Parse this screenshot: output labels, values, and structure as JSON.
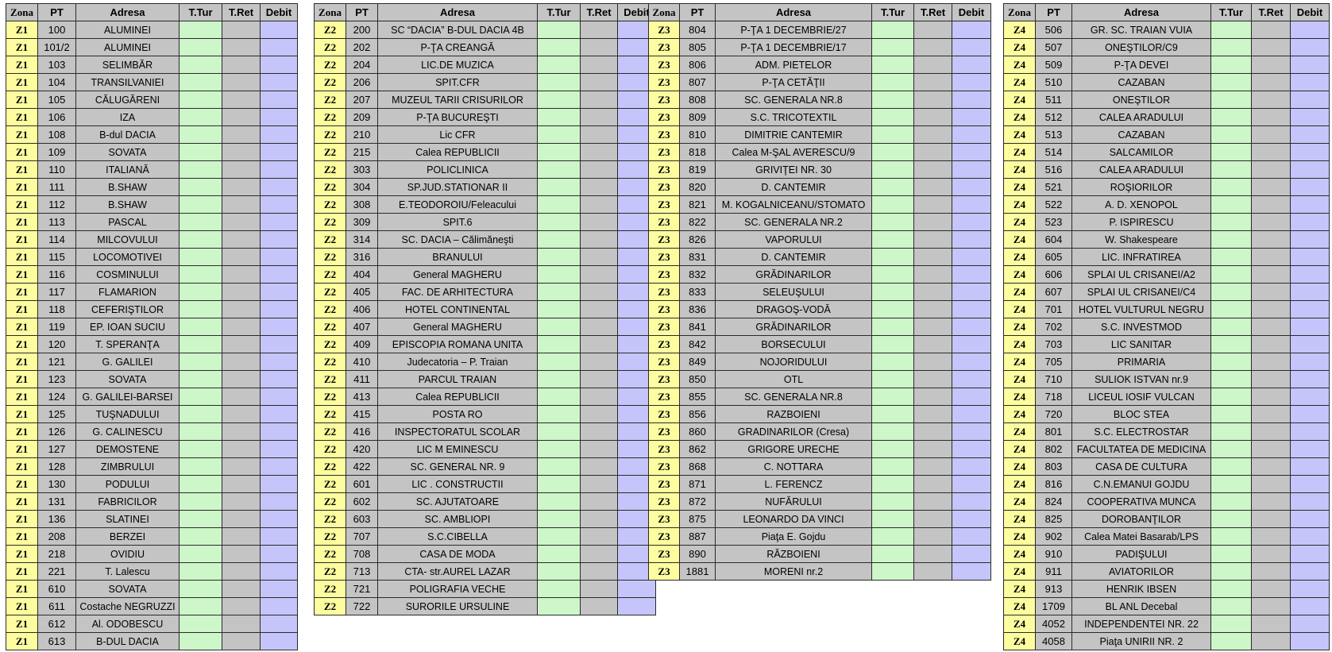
{
  "headers": [
    "Zona",
    "PT",
    "Adresa",
    "T.Tur",
    "T.Ret",
    "Debit"
  ],
  "tables": [
    {
      "zona": "Z1",
      "rows": [
        {
          "pt": "100",
          "adresa": "ALUMINEI"
        },
        {
          "pt": "101/2",
          "adresa": "ALUMINEI"
        },
        {
          "pt": "103",
          "adresa": "SELIMBĂR"
        },
        {
          "pt": "104",
          "adresa": "TRANSILVANIEI"
        },
        {
          "pt": "105",
          "adresa": "CĂLUGĂRENI"
        },
        {
          "pt": "106",
          "adresa": "IZA"
        },
        {
          "pt": "108",
          "adresa": "B-dul DACIA"
        },
        {
          "pt": "109",
          "adresa": "SOVATA"
        },
        {
          "pt": "110",
          "adresa": "ITALIANĂ"
        },
        {
          "pt": "111",
          "adresa": "B.SHAW"
        },
        {
          "pt": "112",
          "adresa": "B.SHAW"
        },
        {
          "pt": "113",
          "adresa": "PASCAL"
        },
        {
          "pt": "114",
          "adresa": "MILCOVULUI"
        },
        {
          "pt": "115",
          "adresa": "LOCOMOTIVEI"
        },
        {
          "pt": "116",
          "adresa": "COSMINULUI"
        },
        {
          "pt": "117",
          "adresa": "FLAMARION"
        },
        {
          "pt": "118",
          "adresa": "CEFERIŞTILOR"
        },
        {
          "pt": "119",
          "adresa": "EP. IOAN SUCIU"
        },
        {
          "pt": "120",
          "adresa": "T. SPERANŢA"
        },
        {
          "pt": "121",
          "adresa": "G. GALILEI"
        },
        {
          "pt": "123",
          "adresa": "SOVATA"
        },
        {
          "pt": "124",
          "adresa": "G. GALILEI-BARSEI"
        },
        {
          "pt": "125",
          "adresa": "TUŞNADULUI"
        },
        {
          "pt": "126",
          "adresa": "G. CALINESCU"
        },
        {
          "pt": "127",
          "adresa": "DEMOSTENE"
        },
        {
          "pt": "128",
          "adresa": "ZIMBRULUI"
        },
        {
          "pt": "130",
          "adresa": "PODULUI"
        },
        {
          "pt": "131",
          "adresa": "FABRICILOR"
        },
        {
          "pt": "136",
          "adresa": "SLATINEI"
        },
        {
          "pt": "208",
          "adresa": "BERZEI"
        },
        {
          "pt": "218",
          "adresa": "OVIDIU"
        },
        {
          "pt": "221",
          "adresa": "T. Lalescu"
        },
        {
          "pt": "610",
          "adresa": "SOVATA"
        },
        {
          "pt": "611",
          "adresa": "Costache NEGRUZZI"
        },
        {
          "pt": "612",
          "adresa": "Al. ODOBESCU"
        },
        {
          "pt": "613",
          "adresa": "B-DUL DACIA"
        }
      ]
    },
    {
      "zona": "Z2",
      "rows": [
        {
          "pt": "200",
          "adresa": "SC “DACIA” B-DUL DACIA 4B"
        },
        {
          "pt": "202",
          "adresa": "P-ŢA CREANGĂ"
        },
        {
          "pt": "204",
          "adresa": "LIC.DE MUZICA"
        },
        {
          "pt": "206",
          "adresa": "SPIT.CFR"
        },
        {
          "pt": "207",
          "adresa": "MUZEUL TARII CRISURILOR"
        },
        {
          "pt": "209",
          "adresa": "P-ŢA BUCUREŞTI"
        },
        {
          "pt": "210",
          "adresa": "Lic CFR"
        },
        {
          "pt": "215",
          "adresa": "Calea REPUBLICII"
        },
        {
          "pt": "303",
          "adresa": "POLICLINICA"
        },
        {
          "pt": "304",
          "adresa": "SP.JUD.STATIONAR II"
        },
        {
          "pt": "308",
          "adresa": "E.TEODOROIU/Feleacului"
        },
        {
          "pt": "309",
          "adresa": "SPIT.6"
        },
        {
          "pt": "314",
          "adresa": "SC. DACIA – Călimăneşti"
        },
        {
          "pt": "316",
          "adresa": "BRANULUI"
        },
        {
          "pt": "404",
          "adresa": "General MAGHERU"
        },
        {
          "pt": "405",
          "adresa": "FAC. DE ARHITECTURA"
        },
        {
          "pt": "406",
          "adresa": "HOTEL CONTINENTAL"
        },
        {
          "pt": "407",
          "adresa": "General MAGHERU"
        },
        {
          "pt": "409",
          "adresa": "EPISCOPIA ROMANA UNITA"
        },
        {
          "pt": "410",
          "adresa": "Judecatoria – P. Traian"
        },
        {
          "pt": "411",
          "adresa": "PARCUL TRAIAN"
        },
        {
          "pt": "413",
          "adresa": "Calea REPUBLICII"
        },
        {
          "pt": "415",
          "adresa": "POSTA RO"
        },
        {
          "pt": "416",
          "adresa": "INSPECTORATUL SCOLAR"
        },
        {
          "pt": "420",
          "adresa": "LIC M EMINESCU"
        },
        {
          "pt": "422",
          "adresa": "SC. GENERAL NR. 9"
        },
        {
          "pt": "601",
          "adresa": "LIC . CONSTRUCTII"
        },
        {
          "pt": "602",
          "adresa": "SC. AJUTATOARE"
        },
        {
          "pt": "603",
          "adresa": "SC. AMBLIOPI"
        },
        {
          "pt": "707",
          "adresa": "S.C.CIBELLA"
        },
        {
          "pt": "708",
          "adresa": "CASA DE MODA"
        },
        {
          "pt": "713",
          "adresa": "CTA- str.AUREL LAZAR"
        },
        {
          "pt": "721",
          "adresa": "POLIGRAFIA VECHE"
        },
        {
          "pt": "722",
          "adresa": "SURORILE URSULINE"
        }
      ]
    },
    {
      "zona": "Z3",
      "rows": [
        {
          "pt": "804",
          "adresa": "P-ŢA 1 DECEMBRIE/27"
        },
        {
          "pt": "805",
          "adresa": "P-ŢA 1 DECEMBRIE/17"
        },
        {
          "pt": "806",
          "adresa": "ADM. PIETELOR"
        },
        {
          "pt": "807",
          "adresa": "P-ŢA CETĂŢII"
        },
        {
          "pt": "808",
          "adresa": "SC. GENERALA NR.8"
        },
        {
          "pt": "809",
          "adresa": "S.C. TRICOTEXTIL"
        },
        {
          "pt": "810",
          "adresa": "DIMITRIE CANTEMIR"
        },
        {
          "pt": "818",
          "adresa": "Calea M-ŞAL AVERESCU/9"
        },
        {
          "pt": "819",
          "adresa": "GRIVIŢEI NR. 30"
        },
        {
          "pt": "820",
          "adresa": "D. CANTEMIR"
        },
        {
          "pt": "821",
          "adresa": "M. KOGALNICEANU/STOMATO"
        },
        {
          "pt": "822",
          "adresa": "SC. GENERALA NR.2"
        },
        {
          "pt": "826",
          "adresa": "VAPORULUI"
        },
        {
          "pt": "831",
          "adresa": "D. CANTEMIR"
        },
        {
          "pt": "832",
          "adresa": "GRĂDINARILOR"
        },
        {
          "pt": "833",
          "adresa": "SELEUŞULUI"
        },
        {
          "pt": "836",
          "adresa": "DRAGOŞ-VODĂ"
        },
        {
          "pt": "841",
          "adresa": "GRĂDINARILOR"
        },
        {
          "pt": "842",
          "adresa": "BORSECULUI"
        },
        {
          "pt": "849",
          "adresa": "NOJORIDULUI"
        },
        {
          "pt": "850",
          "adresa": "OTL"
        },
        {
          "pt": "855",
          "adresa": "SC. GENERALA NR.8"
        },
        {
          "pt": "856",
          "adresa": "RAZBOIENI"
        },
        {
          "pt": "860",
          "adresa": "GRADINARILOR (Cresa)"
        },
        {
          "pt": "862",
          "adresa": "GRIGORE URECHE"
        },
        {
          "pt": "868",
          "adresa": "C. NOTTARA"
        },
        {
          "pt": "871",
          "adresa": "L. FERENCZ"
        },
        {
          "pt": "872",
          "adresa": "NUFĂRULUI"
        },
        {
          "pt": "875",
          "adresa": "LEONARDO DA VINCI"
        },
        {
          "pt": "887",
          "adresa": "Piaţa E. Gojdu"
        },
        {
          "pt": "890",
          "adresa": "RĂZBOIENI"
        },
        {
          "pt": "1881",
          "adresa": "MORENI nr.2"
        }
      ]
    },
    {
      "zona": "Z4",
      "rows": [
        {
          "pt": "506",
          "adresa": "GR. SC. TRAIAN VUIA"
        },
        {
          "pt": "507",
          "adresa": "ONEŞTILOR/C9"
        },
        {
          "pt": "509",
          "adresa": "P-ŢA DEVEI"
        },
        {
          "pt": "510",
          "adresa": "CAZABAN"
        },
        {
          "pt": "511",
          "adresa": "ONEŞTILOR"
        },
        {
          "pt": "512",
          "adresa": "CALEA ARADULUI"
        },
        {
          "pt": "513",
          "adresa": "CAZABAN"
        },
        {
          "pt": "514",
          "adresa": "SALCAMILOR"
        },
        {
          "pt": "516",
          "adresa": "CALEA ARADULUI"
        },
        {
          "pt": "521",
          "adresa": "ROŞIORILOR"
        },
        {
          "pt": "522",
          "adresa": "A. D. XENOPOL"
        },
        {
          "pt": "523",
          "adresa": "P. ISPIRESCU"
        },
        {
          "pt": "604",
          "adresa": "W. Shakespeare"
        },
        {
          "pt": "605",
          "adresa": "LIC. INFRATIREA"
        },
        {
          "pt": "606",
          "adresa": "SPLAI UL CRISANEI/A2"
        },
        {
          "pt": "607",
          "adresa": "SPLAI UL CRISANEI/C4"
        },
        {
          "pt": "701",
          "adresa": "HOTEL VULTURUL NEGRU"
        },
        {
          "pt": "702",
          "adresa": "S.C. INVESTMOD"
        },
        {
          "pt": "703",
          "adresa": "LIC SANITAR"
        },
        {
          "pt": "705",
          "adresa": "PRIMARIA"
        },
        {
          "pt": "710",
          "adresa": "SULIOK ISTVAN nr.9"
        },
        {
          "pt": "718",
          "adresa": "LICEUL IOSIF VULCAN"
        },
        {
          "pt": "720",
          "adresa": "BLOC STEA"
        },
        {
          "pt": "801",
          "adresa": "S.C. ELECTROSTAR"
        },
        {
          "pt": "802",
          "adresa": "FACULTATEA DE MEDICINA"
        },
        {
          "pt": "803",
          "adresa": "CASA DE CULTURA"
        },
        {
          "pt": "816",
          "adresa": "C.N.EMANUI GOJDU"
        },
        {
          "pt": "824",
          "adresa": "COOPERATIVA MUNCA"
        },
        {
          "pt": "825",
          "adresa": "DOROBANŢILOR"
        },
        {
          "pt": "902",
          "adresa": "Calea Matei Basarab/LPS"
        },
        {
          "pt": "910",
          "adresa": "PADIŞULUI"
        },
        {
          "pt": "911",
          "adresa": "AVIATORILOR"
        },
        {
          "pt": "913",
          "adresa": "HENRIK IBSEN"
        },
        {
          "pt": "1709",
          "adresa": "BL ANL Decebal"
        },
        {
          "pt": "4052",
          "adresa": "INDEPENDENTEI NR. 22"
        },
        {
          "pt": "4058",
          "adresa": "Piaţa UNIRII NR. 2"
        }
      ]
    }
  ],
  "colors": {
    "zona_bg": "#fdfd9f",
    "gray_bg": "#c4c4c4",
    "ttur_bg": "#cdf7c8",
    "debit_bg": "#c5c5fb"
  }
}
